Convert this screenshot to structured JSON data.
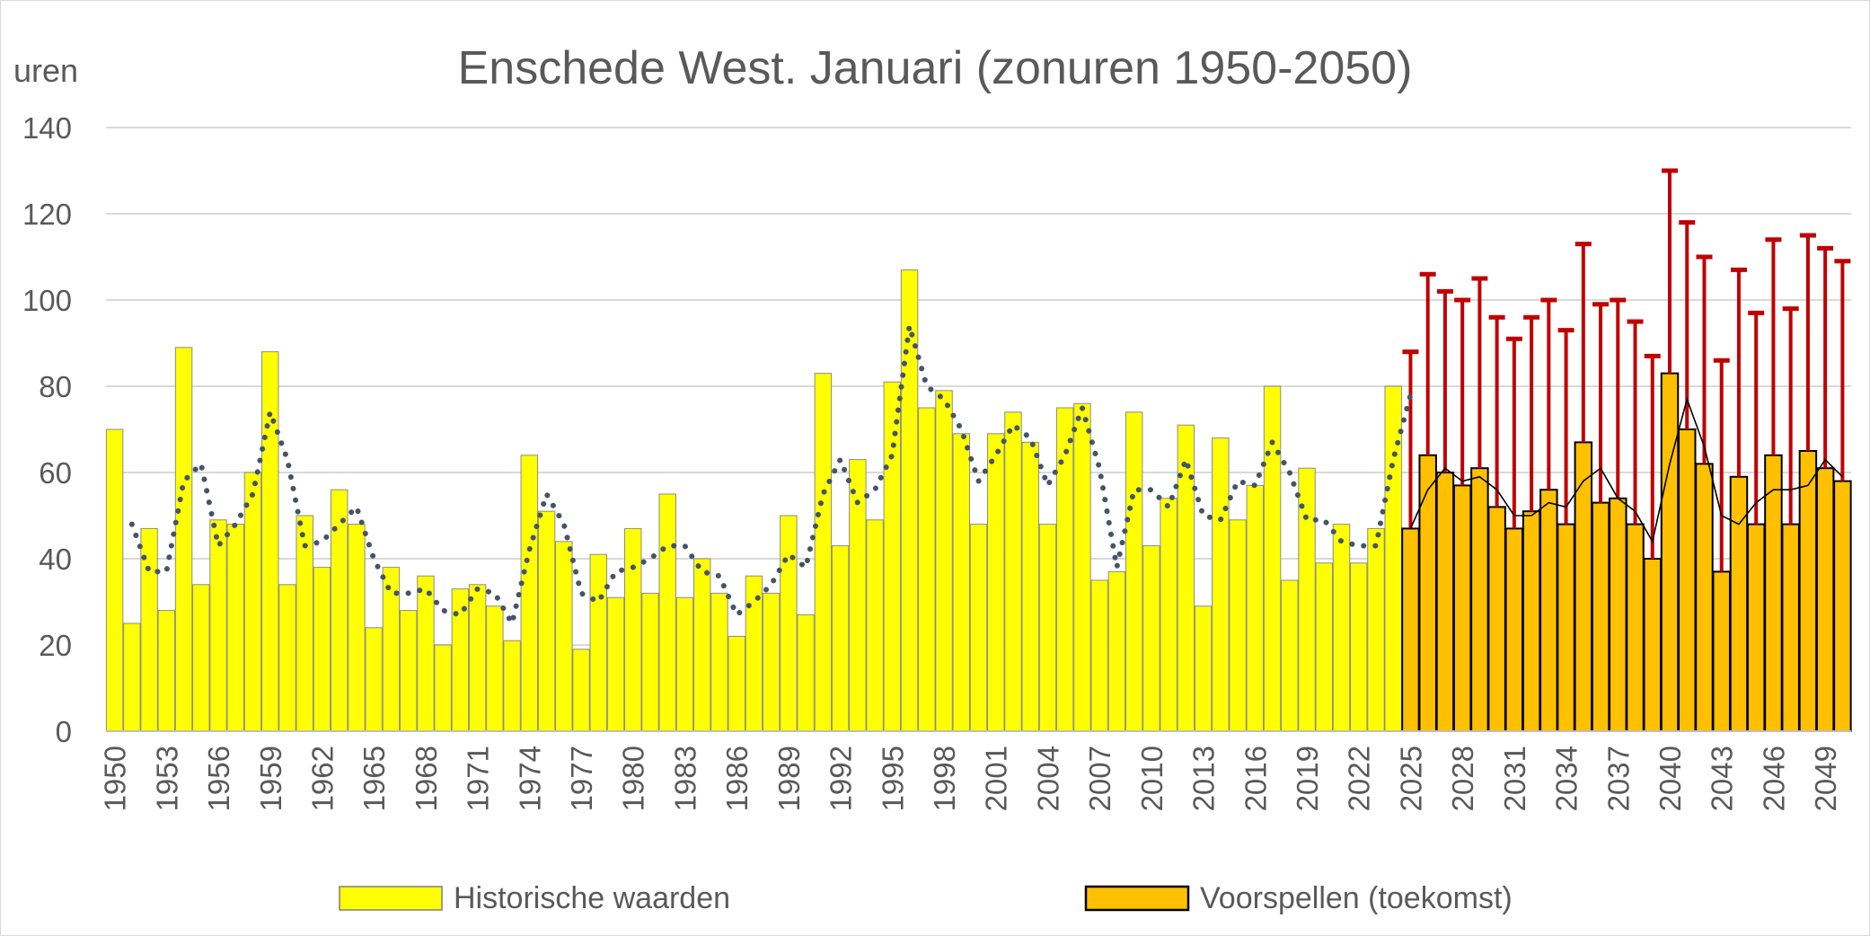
{
  "chart_data": {
    "type": "bar",
    "title": "Enschede West. Januari (zonuren 1950-2050)",
    "ylabel": "uren",
    "ylim": [
      0,
      140
    ],
    "yticks": [
      0,
      20,
      40,
      60,
      80,
      100,
      120,
      140
    ],
    "grid": true,
    "legend_position": "bottom",
    "x_start": 1950,
    "x_end": 2050,
    "x_tick_labels": [
      "1950",
      "1953",
      "1956",
      "1959",
      "1962",
      "1965",
      "1968",
      "1971",
      "1974",
      "1977",
      "1980",
      "1983",
      "1986",
      "1989",
      "1992",
      "1995",
      "1998",
      "2001",
      "2004",
      "2007",
      "2010",
      "2013",
      "2016",
      "2019",
      "2022",
      "2025",
      "2028",
      "2031",
      "2034",
      "2037",
      "2040",
      "2043",
      "2046",
      "2049"
    ],
    "series": [
      {
        "name": "Historische waarden",
        "color": "#FFFF00",
        "x": [
          1950,
          1951,
          1952,
          1953,
          1954,
          1955,
          1956,
          1957,
          1958,
          1959,
          1960,
          1961,
          1962,
          1963,
          1964,
          1965,
          1966,
          1967,
          1968,
          1969,
          1970,
          1971,
          1972,
          1973,
          1974,
          1975,
          1976,
          1977,
          1978,
          1979,
          1980,
          1981,
          1982,
          1983,
          1984,
          1985,
          1986,
          1987,
          1988,
          1989,
          1990,
          1991,
          1992,
          1993,
          1994,
          1995,
          1996,
          1997,
          1998,
          1999,
          2000,
          2001,
          2002,
          2003,
          2004,
          2005,
          2006,
          2007,
          2008,
          2009,
          2010,
          2011,
          2012,
          2013,
          2014,
          2015,
          2016,
          2017,
          2018,
          2019,
          2020,
          2021,
          2022,
          2023,
          2024
        ],
        "values": [
          70,
          25,
          47,
          28,
          89,
          34,
          49,
          48,
          60,
          88,
          34,
          50,
          38,
          56,
          48,
          24,
          38,
          28,
          36,
          20,
          33,
          34,
          29,
          21,
          64,
          51,
          44,
          19,
          41,
          31,
          47,
          32,
          55,
          31,
          40,
          32,
          22,
          36,
          32,
          50,
          27,
          83,
          43,
          63,
          49,
          81,
          107,
          75,
          79,
          69,
          48,
          69,
          74,
          67,
          48,
          75,
          76,
          35,
          37,
          74,
          43,
          54,
          71,
          29,
          68,
          49,
          57,
          80,
          35,
          61,
          39,
          48,
          39,
          47,
          80
        ]
      },
      {
        "name": "Voorspellen (toekomst)",
        "color": "#FFC000",
        "x": [
          2025,
          2026,
          2027,
          2028,
          2029,
          2030,
          2031,
          2032,
          2033,
          2034,
          2035,
          2036,
          2037,
          2038,
          2039,
          2040,
          2041,
          2042,
          2043,
          2044,
          2045,
          2046,
          2047,
          2048,
          2049,
          2050
        ],
        "values": [
          47,
          64,
          60,
          57,
          61,
          52,
          47,
          51,
          56,
          48,
          67,
          53,
          54,
          48,
          40,
          83,
          70,
          62,
          37,
          59,
          48,
          64,
          48,
          65,
          61,
          58
        ],
        "error_upper": [
          88,
          106,
          102,
          100,
          105,
          96,
          91,
          96,
          100,
          93,
          113,
          99,
          100,
          95,
          87,
          130,
          118,
          110,
          86,
          107,
          97,
          114,
          98,
          115,
          112,
          109
        ],
        "error_color": "#C00000"
      },
      {
        "type": "moving_average",
        "color": "#44546A",
        "style": "dotted",
        "x": [
          1951,
          1952,
          1953,
          1954,
          1955,
          1956,
          1957,
          1958,
          1959,
          1960,
          1961,
          1962,
          1963,
          1964,
          1965,
          1966,
          1967,
          1968,
          1969,
          1970,
          1971,
          1972,
          1973,
          1974,
          1975,
          1976,
          1977,
          1978,
          1979,
          1980,
          1981,
          1982,
          1983,
          1984,
          1985,
          1986,
          1987,
          1988,
          1989,
          1990,
          1991,
          1992,
          1993,
          1994,
          1995,
          1996,
          1997,
          1998,
          1999,
          2000,
          2001,
          2002,
          2003,
          2004,
          2005,
          2006,
          2007,
          2008,
          2009,
          2010,
          2011,
          2012,
          2013,
          2014,
          2015,
          2016,
          2017,
          2018,
          2019,
          2020,
          2021,
          2022,
          2023,
          2024,
          2025
        ],
        "values": [
          48,
          37,
          37,
          58,
          62,
          43,
          48,
          55,
          74,
          63,
          43,
          44,
          48,
          52,
          40,
          32,
          32,
          33,
          28,
          27,
          33,
          32,
          25,
          42,
          55,
          48,
          32,
          30,
          37,
          38,
          40,
          43,
          43,
          37,
          36,
          27,
          30,
          34,
          41,
          38,
          55,
          63,
          53,
          56,
          64,
          94,
          80,
          77,
          70,
          58,
          64,
          71,
          68,
          57,
          64,
          75,
          61,
          38,
          56,
          56,
          52,
          63,
          50,
          49,
          58,
          57,
          67,
          60,
          49,
          49,
          44,
          43,
          43,
          63,
          78
        ]
      },
      {
        "type": "moving_average",
        "color": "#000000",
        "style": "solid",
        "x": [
          2025,
          2026,
          2027,
          2028,
          2029,
          2030,
          2031,
          2032,
          2033,
          2034,
          2035,
          2036,
          2037,
          2038,
          2039,
          2040,
          2041,
          2042,
          2043,
          2044,
          2045,
          2046,
          2047,
          2048,
          2049,
          2050
        ],
        "values": [
          47,
          56,
          61,
          58,
          59,
          56,
          50,
          50,
          53,
          52,
          58,
          61,
          54,
          51,
          44,
          62,
          77,
          66,
          50,
          48,
          53,
          56,
          56,
          57,
          63,
          59
        ]
      }
    ]
  }
}
